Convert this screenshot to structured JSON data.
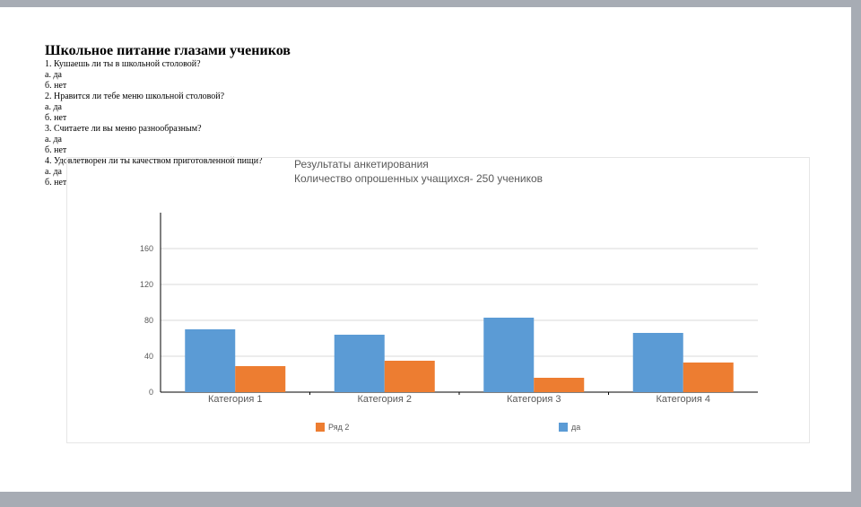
{
  "document": {
    "title": "Школьное питание глазами учеников",
    "lines": [
      "1. Кушаешь ли ты в школьной столовой?",
      "а. да",
      "б. нет",
      "2. Нравится ли тебе меню школьной столовой?",
      "а. да",
      "б. нет",
      "3. Считаете ли вы меню разнообразным?",
      "а. да",
      "б. нет",
      "4. Удовлетворен ли  ты качеством приготовленной пищи?",
      "а. да",
      "б. нет"
    ]
  },
  "chart_data": {
    "type": "bar",
    "title": "Результаты анкетирования",
    "subtitle": "Количество опрошенных учащихся- 250 учеников",
    "categories": [
      "Категория 1",
      "Категория 2",
      "Категория 3",
      "Категория 4"
    ],
    "series": [
      {
        "name": "да",
        "color": "#5b9bd5",
        "values": [
          70,
          64,
          83,
          66
        ]
      },
      {
        "name": "Ряд 2",
        "color": "#ed7d31",
        "values": [
          29,
          35,
          16,
          33
        ]
      }
    ],
    "yticks": [
      0,
      40,
      80,
      120,
      160
    ],
    "ylim": [
      0,
      200
    ],
    "grid": true,
    "legend_position": "bottom"
  }
}
